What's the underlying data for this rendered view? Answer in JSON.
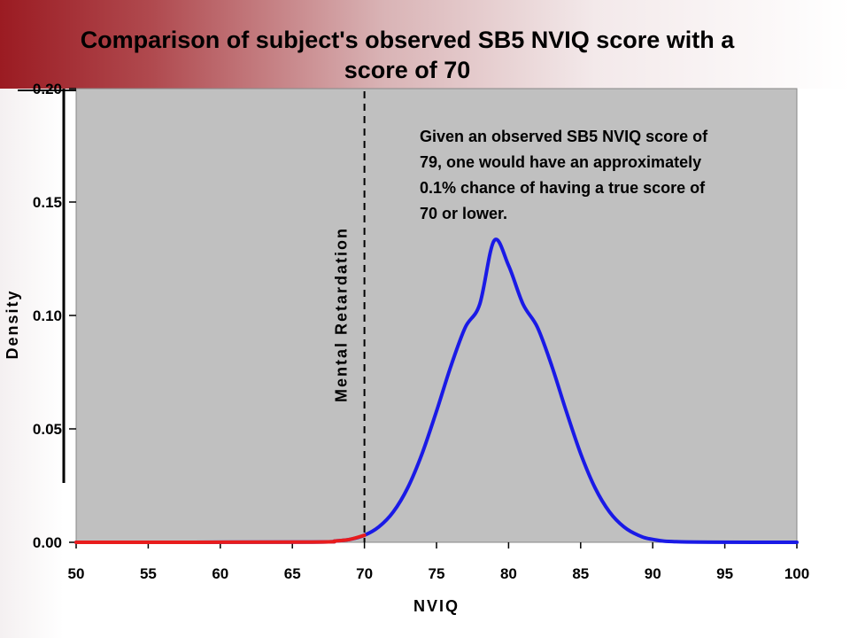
{
  "chart_data": {
    "type": "line",
    "title": "Comparison of subject's observed SB5 NVIQ score with a score of 70",
    "xlabel": "NVIQ",
    "ylabel": "Density",
    "xlim": [
      50,
      100
    ],
    "ylim": [
      0,
      0.2
    ],
    "x_ticks": [
      50,
      55,
      60,
      65,
      70,
      75,
      80,
      85,
      90,
      95,
      100
    ],
    "x_tick_labels": [
      "50",
      "55",
      "60",
      "65",
      "70",
      "75",
      "80",
      "85",
      "90",
      "95",
      "100"
    ],
    "y_ticks": [
      0,
      0.05,
      0.1,
      0.15,
      0.2
    ],
    "y_tick_labels": [
      "0.00",
      "0.05",
      "0.10",
      "0.15",
      "0.20"
    ],
    "series": [
      {
        "color": "#1a1ae6",
        "x": [
          50,
          66,
          68,
          69,
          70,
          71,
          72,
          73,
          74,
          75,
          76,
          77,
          78,
          79,
          80,
          81,
          82,
          83,
          84,
          85,
          86,
          87,
          88,
          89,
          90,
          92,
          100
        ],
        "y": [
          0,
          0.0001,
          0.0006,
          0.0013,
          0.0031,
          0.0068,
          0.0134,
          0.024,
          0.0391,
          0.0578,
          0.0777,
          0.0948,
          0.105,
          0.133,
          0.122,
          0.105,
          0.0948,
          0.0777,
          0.0578,
          0.0391,
          0.024,
          0.0134,
          0.0068,
          0.0031,
          0.0013,
          0.0002,
          0
        ]
      },
      {
        "color": "#e81c1c",
        "x": [
          50,
          66,
          68,
          69,
          70
        ],
        "y": [
          0,
          0.0001,
          0.0006,
          0.0013,
          0.0031
        ]
      }
    ],
    "reference_line": {
      "x": 70,
      "label": "Mental Retardation",
      "style": "dashed"
    },
    "annotation": {
      "lines": [
        "Given an observed SB5 NVIQ score of",
        "79, one would have an approximately",
        "0.1% chance of having a true score of",
        "70 or lower."
      ],
      "position": "top-right"
    },
    "plot_background": "#c0c0c0",
    "grid": false
  }
}
